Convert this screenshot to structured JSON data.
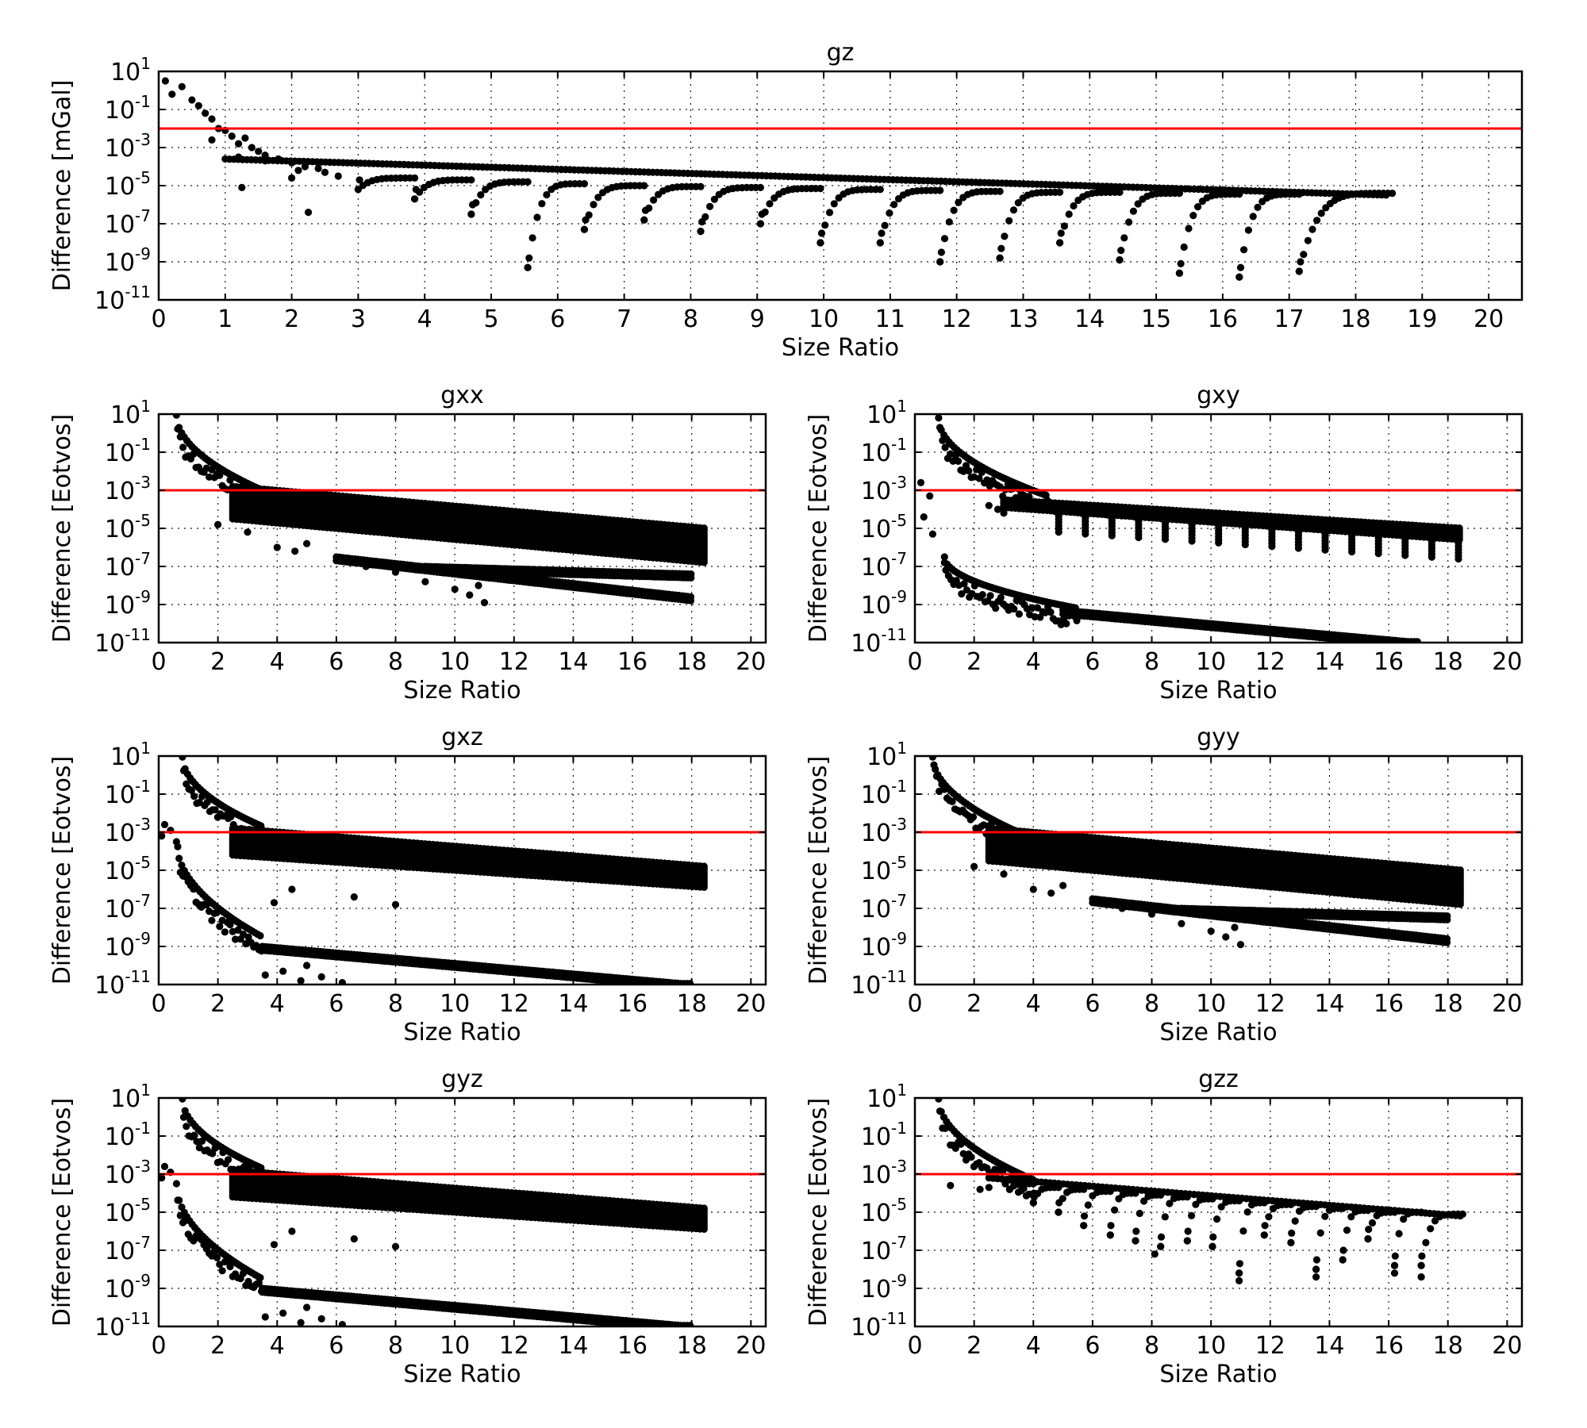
{
  "chart_data": [
    {
      "id": "gz",
      "type": "scatter",
      "title": "gz",
      "xlabel": "Size Ratio",
      "ylabel": "Difference [mGal]",
      "xlim": [
        0,
        20.5
      ],
      "ylim_log10": [
        -11,
        1
      ],
      "y_scale": "log",
      "xticks": [
        0,
        1,
        2,
        3,
        4,
        5,
        6,
        7,
        8,
        9,
        10,
        11,
        12,
        13,
        14,
        15,
        16,
        17,
        18,
        19,
        20
      ],
      "yticks_exp": [
        1,
        -1,
        -3,
        -5,
        -7,
        -9,
        -11
      ],
      "ytick_base": "10",
      "grid": true,
      "threshold": 0.01,
      "threshold_color": "#ff0000",
      "marker_color": "#000000",
      "series": [
        {
          "kind": "head",
          "points": [
            [
              0.1,
              0.5
            ],
            [
              0.2,
              -0.2
            ],
            [
              0.35,
              0.2
            ],
            [
              0.5,
              -0.5
            ],
            [
              0.6,
              -0.8
            ],
            [
              0.7,
              -1.2
            ],
            [
              0.8,
              -1.5
            ],
            [
              0.9,
              -2
            ],
            [
              1.0,
              -2.1
            ],
            [
              1.1,
              -2.4
            ],
            [
              1.2,
              -2.8
            ],
            [
              1.3,
              -2.5
            ],
            [
              1.4,
              -3.0
            ],
            [
              1.5,
              -3.2
            ],
            [
              1.6,
              -3.4
            ],
            [
              1.8,
              -3.6
            ],
            [
              2.0,
              -3.8
            ],
            [
              2.2,
              -4.0
            ],
            [
              2.4,
              -4.1
            ],
            [
              0.8,
              -2.6
            ],
            [
              1.25,
              -5.1
            ],
            [
              1.2,
              -3.5
            ],
            [
              1.6,
              -3.7
            ],
            [
              2.0,
              -4.6
            ],
            [
              2.25,
              -6.4
            ],
            [
              2.1,
              -4.2
            ],
            [
              2.5,
              -4.3
            ],
            [
              2.7,
              -4.5
            ]
          ]
        },
        {
          "kind": "envelope",
          "x_range": [
            1.0,
            18.5
          ],
          "y_range": [
            -3.6,
            -5.5
          ]
        },
        {
          "kind": "hooks",
          "min_x": [
            3.0,
            3.85,
            4.7,
            5.55,
            6.4,
            7.3,
            8.15,
            9.05,
            9.95,
            10.85,
            11.75,
            12.65,
            13.55,
            14.45,
            15.35,
            16.25,
            17.15
          ],
          "min_y": [
            -5.2,
            -5.7,
            -6.5,
            -9.3,
            -7.3,
            -6.8,
            -7.4,
            -7.0,
            -8.0,
            -8.0,
            -9.0,
            -8.8,
            -8.0,
            -8.9,
            -9.6,
            -9.8,
            -9.5
          ],
          "end_x": [
            3.85,
            4.7,
            5.55,
            6.4,
            7.3,
            8.15,
            9.05,
            9.95,
            10.85,
            11.75,
            12.65,
            13.55,
            14.45,
            15.35,
            16.25,
            17.15,
            18.55
          ],
          "end_y": [
            -4.6,
            -4.7,
            -4.8,
            -4.9,
            -5.0,
            -5.05,
            -5.1,
            -5.15,
            -5.2,
            -5.25,
            -5.3,
            -5.35,
            -5.35,
            -5.4,
            -5.45,
            -5.45,
            -5.4
          ]
        }
      ]
    },
    {
      "id": "gxx",
      "type": "scatter",
      "title": "gxx",
      "xlabel": "Size Ratio",
      "ylabel": "Difference [Eotvos]",
      "xlim": [
        0,
        20.5
      ],
      "ylim_log10": [
        -11,
        1
      ],
      "y_scale": "log",
      "xticks": [
        0,
        2,
        4,
        6,
        8,
        10,
        12,
        14,
        16,
        18,
        20
      ],
      "yticks_exp": [
        1,
        -1,
        -3,
        -5,
        -7,
        -9,
        -11
      ],
      "ytick_base": "10",
      "grid": true,
      "threshold": 0.001,
      "threshold_color": "#ff0000",
      "marker_color": "#000000",
      "series": [
        {
          "kind": "decay",
          "x_range": [
            0.6,
            3.5
          ],
          "y_range": [
            1.0,
            -3.0
          ]
        },
        {
          "kind": "band",
          "x_range": [
            2.5,
            18.5
          ],
          "top": [
            -2.8,
            -5.0
          ],
          "bottom": [
            -4.5,
            -6.8
          ]
        },
        {
          "kind": "lower_tail",
          "x_range": [
            6.0,
            18.0
          ],
          "y_range": [
            -6.5,
            -8.6
          ]
        },
        {
          "kind": "lower_tail",
          "x_range": [
            9.0,
            18.0
          ],
          "y_range": [
            -7.0,
            -7.4
          ]
        },
        {
          "kind": "scatter_low",
          "points": [
            [
              2.0,
              -4.8
            ],
            [
              3.0,
              -5.2
            ],
            [
              4.0,
              -6.0
            ],
            [
              4.6,
              -6.2
            ],
            [
              5.0,
              -5.8
            ],
            [
              7.0,
              -7.0
            ],
            [
              8.0,
              -7.3
            ],
            [
              9.0,
              -7.8
            ],
            [
              10.0,
              -8.2
            ],
            [
              10.5,
              -8.5
            ],
            [
              11.0,
              -8.9
            ],
            [
              10.8,
              -8.0
            ]
          ]
        }
      ]
    },
    {
      "id": "gxy",
      "type": "scatter",
      "title": "gxy",
      "xlabel": "Size Ratio",
      "ylabel": "Difference [Eotvos]",
      "xlim": [
        0,
        20.5
      ],
      "ylim_log10": [
        -11,
        1
      ],
      "y_scale": "log",
      "xticks": [
        0,
        2,
        4,
        6,
        8,
        10,
        12,
        14,
        16,
        18,
        20
      ],
      "yticks_exp": [
        1,
        -1,
        -3,
        -5,
        -7,
        -9,
        -11
      ],
      "ytick_base": "10",
      "grid": true,
      "threshold": 0.001,
      "threshold_color": "#ff0000",
      "marker_color": "#000000",
      "series": [
        {
          "kind": "decay",
          "x_range": [
            0.8,
            4.5
          ],
          "y_range": [
            0.8,
            -3.3
          ]
        },
        {
          "kind": "band",
          "x_range": [
            3.0,
            18.5
          ],
          "top": [
            -3.5,
            -5.0
          ],
          "bottom": [
            -3.9,
            -5.6
          ]
        },
        {
          "kind": "hooks_down",
          "x_start": 4.0,
          "x_step": 0.9,
          "count": 16,
          "y_top": [
            -3.9,
            -5.4
          ],
          "depth": 1.0
        },
        {
          "kind": "decay",
          "x_range": [
            1.0,
            5.5
          ],
          "y_range": [
            -6.5,
            -9.2
          ]
        },
        {
          "kind": "lower_tail",
          "x_range": [
            5.0,
            17.0
          ],
          "y_range": [
            -9.3,
            -11.0
          ]
        },
        {
          "kind": "scatter_low",
          "points": [
            [
              0.2,
              -2.6
            ],
            [
              0.5,
              -3.3
            ],
            [
              0.3,
              -4.4
            ],
            [
              0.6,
              -5.3
            ],
            [
              1.0,
              -6.8
            ],
            [
              2.5,
              -3.8
            ],
            [
              3.0,
              -4.2
            ],
            [
              2.8,
              -4.0
            ]
          ]
        }
      ]
    },
    {
      "id": "gxz",
      "type": "scatter",
      "title": "gxz",
      "xlabel": "Size Ratio",
      "ylabel": "Difference [Eotvos]",
      "xlim": [
        0,
        20.5
      ],
      "ylim_log10": [
        -11,
        1
      ],
      "y_scale": "log",
      "xticks": [
        0,
        2,
        4,
        6,
        8,
        10,
        12,
        14,
        16,
        18,
        20
      ],
      "yticks_exp": [
        1,
        -1,
        -3,
        -5,
        -7,
        -9,
        -11
      ],
      "ytick_base": "10",
      "grid": true,
      "threshold": 0.001,
      "threshold_color": "#ff0000",
      "marker_color": "#000000",
      "series": [
        {
          "kind": "decay",
          "x_range": [
            0.8,
            3.5
          ],
          "y_range": [
            1.0,
            -2.7
          ]
        },
        {
          "kind": "band",
          "x_range": [
            2.5,
            18.5
          ],
          "top": [
            -2.8,
            -4.8
          ],
          "bottom": [
            -4.2,
            -5.9
          ]
        },
        {
          "kind": "decay",
          "x_range": [
            0.6,
            3.5
          ],
          "y_range": [
            -3.5,
            -8.5
          ]
        },
        {
          "kind": "lower_tail",
          "x_range": [
            3.5,
            18.0
          ],
          "y_range": [
            -9.0,
            -11.0
          ]
        },
        {
          "kind": "scatter_low",
          "points": [
            [
              0.2,
              -2.6
            ],
            [
              0.4,
              -2.9
            ],
            [
              0.1,
              -3.2
            ],
            [
              3.9,
              -6.7
            ],
            [
              4.5,
              -6.0
            ],
            [
              6.6,
              -6.4
            ],
            [
              8.0,
              -6.8
            ],
            [
              3.6,
              -10.5
            ],
            [
              4.2,
              -10.3
            ],
            [
              4.8,
              -10.8
            ],
            [
              5.5,
              -10.6
            ],
            [
              6.2,
              -10.9
            ],
            [
              5.0,
              -10.0
            ]
          ]
        }
      ]
    },
    {
      "id": "gyy",
      "type": "scatter",
      "title": "gyy",
      "xlabel": "Size Ratio",
      "ylabel": "Difference [Eotvos]",
      "xlim": [
        0,
        20.5
      ],
      "ylim_log10": [
        -11,
        1
      ],
      "y_scale": "log",
      "xticks": [
        0,
        2,
        4,
        6,
        8,
        10,
        12,
        14,
        16,
        18,
        20
      ],
      "yticks_exp": [
        1,
        -1,
        -3,
        -5,
        -7,
        -9,
        -11
      ],
      "ytick_base": "10",
      "grid": true,
      "threshold": 0.001,
      "threshold_color": "#ff0000",
      "marker_color": "#000000",
      "series": [
        {
          "kind": "decay",
          "x_range": [
            0.6,
            3.5
          ],
          "y_range": [
            1.0,
            -3.0
          ]
        },
        {
          "kind": "band",
          "x_range": [
            2.5,
            18.5
          ],
          "top": [
            -2.8,
            -5.0
          ],
          "bottom": [
            -4.5,
            -6.8
          ]
        },
        {
          "kind": "lower_tail",
          "x_range": [
            6.0,
            18.0
          ],
          "y_range": [
            -6.5,
            -8.6
          ]
        },
        {
          "kind": "lower_tail",
          "x_range": [
            9.0,
            18.0
          ],
          "y_range": [
            -7.0,
            -7.4
          ]
        },
        {
          "kind": "scatter_low",
          "points": [
            [
              2.0,
              -4.8
            ],
            [
              3.0,
              -5.2
            ],
            [
              4.0,
              -6.0
            ],
            [
              4.6,
              -6.2
            ],
            [
              5.0,
              -5.8
            ],
            [
              7.0,
              -7.0
            ],
            [
              8.0,
              -7.3
            ],
            [
              9.0,
              -7.8
            ],
            [
              10.0,
              -8.2
            ],
            [
              10.5,
              -8.5
            ],
            [
              11.0,
              -8.9
            ],
            [
              10.8,
              -8.0
            ]
          ]
        }
      ]
    },
    {
      "id": "gyz",
      "type": "scatter",
      "title": "gyz",
      "xlabel": "Size Ratio",
      "ylabel": "Difference [Eotvos]",
      "xlim": [
        0,
        20.5
      ],
      "ylim_log10": [
        -11,
        1
      ],
      "y_scale": "log",
      "xticks": [
        0,
        2,
        4,
        6,
        8,
        10,
        12,
        14,
        16,
        18,
        20
      ],
      "yticks_exp": [
        1,
        -1,
        -3,
        -5,
        -7,
        -9,
        -11
      ],
      "ytick_base": "10",
      "grid": true,
      "threshold": 0.001,
      "threshold_color": "#ff0000",
      "marker_color": "#000000",
      "series": [
        {
          "kind": "decay",
          "x_range": [
            0.8,
            3.5
          ],
          "y_range": [
            1.0,
            -2.7
          ]
        },
        {
          "kind": "band",
          "x_range": [
            2.5,
            18.5
          ],
          "top": [
            -2.8,
            -4.8
          ],
          "bottom": [
            -4.2,
            -5.9
          ]
        },
        {
          "kind": "decay",
          "x_range": [
            0.6,
            3.5
          ],
          "y_range": [
            -3.5,
            -8.5
          ]
        },
        {
          "kind": "lower_tail",
          "x_range": [
            3.5,
            18.0
          ],
          "y_range": [
            -9.0,
            -11.0
          ]
        },
        {
          "kind": "scatter_low",
          "points": [
            [
              0.2,
              -2.6
            ],
            [
              0.4,
              -2.9
            ],
            [
              0.1,
              -3.2
            ],
            [
              3.9,
              -6.7
            ],
            [
              4.5,
              -6.0
            ],
            [
              6.6,
              -6.4
            ],
            [
              8.0,
              -6.8
            ],
            [
              3.6,
              -10.5
            ],
            [
              4.2,
              -10.3
            ],
            [
              4.8,
              -10.8
            ],
            [
              5.5,
              -10.6
            ],
            [
              6.2,
              -10.9
            ],
            [
              5.0,
              -10.0
            ]
          ]
        }
      ]
    },
    {
      "id": "gzz",
      "type": "scatter",
      "title": "gzz",
      "xlabel": "Size Ratio",
      "ylabel": "Difference [Eotvos]",
      "xlim": [
        0,
        20.5
      ],
      "ylim_log10": [
        -11,
        1
      ],
      "y_scale": "log",
      "xticks": [
        0,
        2,
        4,
        6,
        8,
        10,
        12,
        14,
        16,
        18,
        20
      ],
      "yticks_exp": [
        1,
        -1,
        -3,
        -5,
        -7,
        -9,
        -11
      ],
      "ytick_base": "10",
      "grid": true,
      "threshold": 0.001,
      "threshold_color": "#ff0000",
      "marker_color": "#000000",
      "series": [
        {
          "kind": "decay",
          "x_range": [
            0.8,
            4.0
          ],
          "y_range": [
            1.0,
            -3.3
          ]
        },
        {
          "kind": "envelope",
          "x_range": [
            2.5,
            18.5
          ],
          "y_range": [
            -3.2,
            -5.2
          ]
        },
        {
          "kind": "hooks",
          "min_x": [
            3.2,
            4.0,
            4.85,
            5.7,
            6.6,
            7.45,
            8.3,
            9.2,
            10.05,
            10.95,
            11.8,
            12.7,
            13.55,
            14.45,
            15.3,
            16.2,
            17.1
          ],
          "min_y": [
            -3.8,
            -4.5,
            -5.0,
            -5.7,
            -6.2,
            -6.5,
            -6.8,
            -6.5,
            -6.8,
            -8.2,
            -6.2,
            -6.6,
            -8.0,
            -7.5,
            -6.4,
            -7.8,
            -7.8
          ],
          "end_x": [
            4.0,
            4.85,
            5.7,
            6.6,
            7.45,
            8.3,
            9.2,
            10.05,
            10.95,
            11.8,
            12.7,
            13.55,
            14.45,
            15.3,
            16.2,
            17.1,
            18.5
          ],
          "end_y": [
            -3.5,
            -3.7,
            -3.8,
            -3.9,
            -4.0,
            -4.1,
            -4.2,
            -4.3,
            -4.4,
            -4.5,
            -4.6,
            -4.7,
            -4.8,
            -4.9,
            -5.0,
            -5.0,
            -5.1
          ]
        },
        {
          "kind": "scatter_low",
          "points": [
            [
              1.2,
              -3.6
            ],
            [
              2.2,
              -3.8
            ],
            [
              2.5,
              -3.7
            ],
            [
              8.1,
              -7.2
            ],
            [
              10.95,
              -8.6
            ],
            [
              13.55,
              -8.4
            ],
            [
              16.2,
              -8.2
            ],
            [
              17.1,
              -8.4
            ]
          ]
        }
      ]
    }
  ]
}
